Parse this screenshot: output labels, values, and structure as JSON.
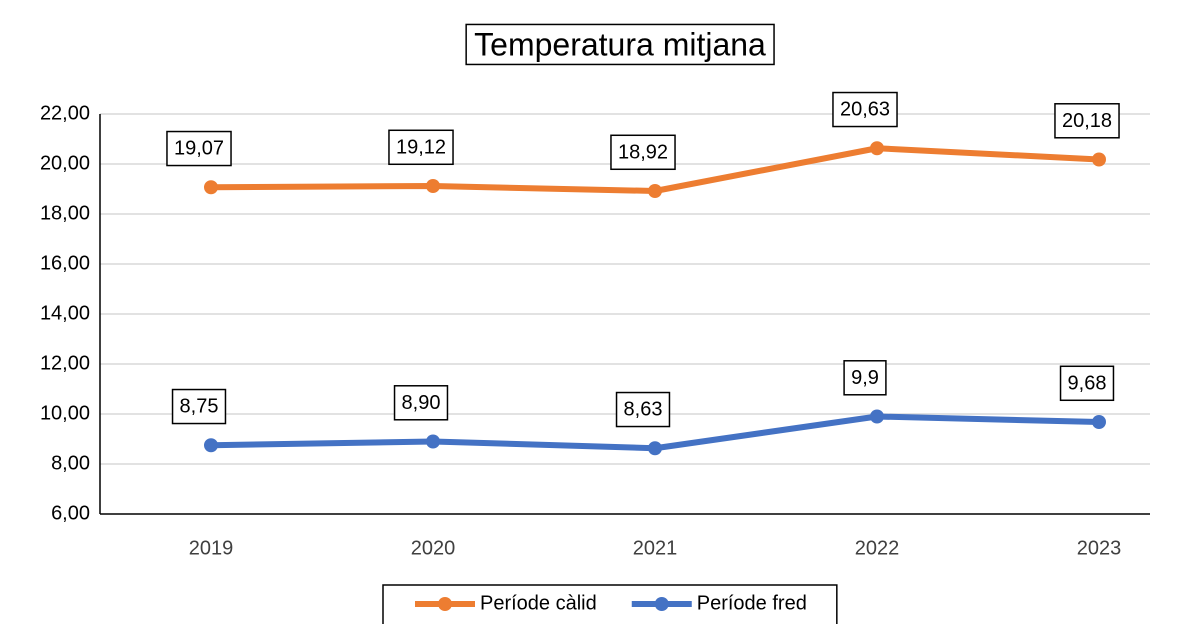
{
  "chart_data": {
    "type": "line",
    "title": "Temperatura mitjana",
    "categories": [
      "2019",
      "2020",
      "2021",
      "2022",
      "2023"
    ],
    "series": [
      {
        "name": "Període càlid",
        "color": "#ED7D31",
        "values": [
          19.07,
          19.12,
          18.92,
          20.63,
          20.18
        ],
        "value_labels": [
          "19,07",
          "19,12",
          "18,92",
          "20,63",
          "20,18"
        ]
      },
      {
        "name": "Període fred",
        "color": "#4472C4",
        "values": [
          8.75,
          8.9,
          8.63,
          9.9,
          9.68
        ],
        "value_labels": [
          "8,75",
          "8,90",
          "8,63",
          "9,9",
          "9,68"
        ]
      }
    ],
    "ylim": [
      6,
      22
    ],
    "yticks": [
      {
        "value": 6,
        "label": "6,00"
      },
      {
        "value": 8,
        "label": "8,00"
      },
      {
        "value": 10,
        "label": "10,00"
      },
      {
        "value": 12,
        "label": "12,00"
      },
      {
        "value": 14,
        "label": "14,00"
      },
      {
        "value": 16,
        "label": "16,00"
      },
      {
        "value": 18,
        "label": "18,00"
      },
      {
        "value": 20,
        "label": "20,00"
      },
      {
        "value": 22,
        "label": "22,00"
      }
    ],
    "grid": true,
    "legend": "bottom"
  }
}
